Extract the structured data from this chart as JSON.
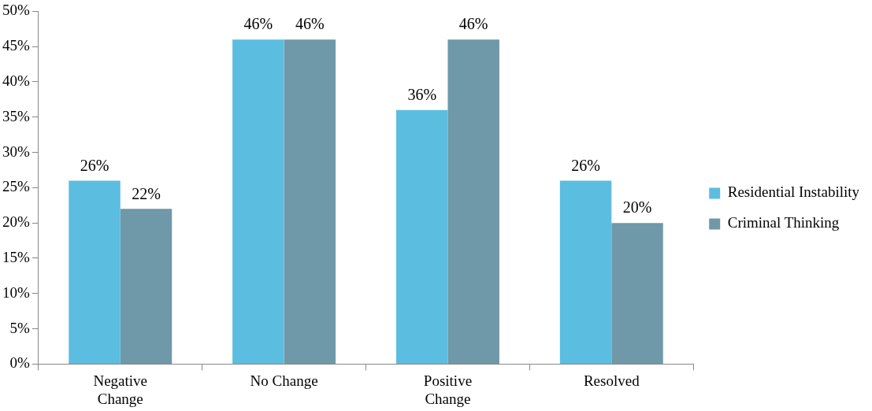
{
  "chart_data": {
    "type": "bar",
    "categories": [
      "Negative Change",
      "No Change",
      "Positive Change",
      "Resolved"
    ],
    "series": [
      {
        "name": "Residential Instability",
        "color": "#5bbde0",
        "values": [
          26,
          46,
          36,
          26
        ]
      },
      {
        "name": "Criminal Thinking",
        "color": "#6f98a8",
        "values": [
          22,
          46,
          46,
          20
        ]
      }
    ],
    "ylim": [
      0,
      50
    ],
    "yticks": [
      {
        "value": 0,
        "label": "0%"
      },
      {
        "value": 5,
        "label": "5%"
      },
      {
        "value": 10,
        "label": "10%"
      },
      {
        "value": 15,
        "label": "15%"
      },
      {
        "value": 20,
        "label": "20%"
      },
      {
        "value": 25,
        "label": "25%"
      },
      {
        "value": 30,
        "label": "30%"
      },
      {
        "value": 35,
        "label": "35%"
      },
      {
        "value": 40,
        "label": "40%"
      },
      {
        "value": 45,
        "label": "45%"
      },
      {
        "value": 50,
        "label": "50%"
      }
    ],
    "value_labels": [
      [
        "26%",
        "46%",
        "36%",
        "26%"
      ],
      [
        "22%",
        "46%",
        "46%",
        "20%"
      ]
    ],
    "grid": false,
    "legend": "right"
  }
}
